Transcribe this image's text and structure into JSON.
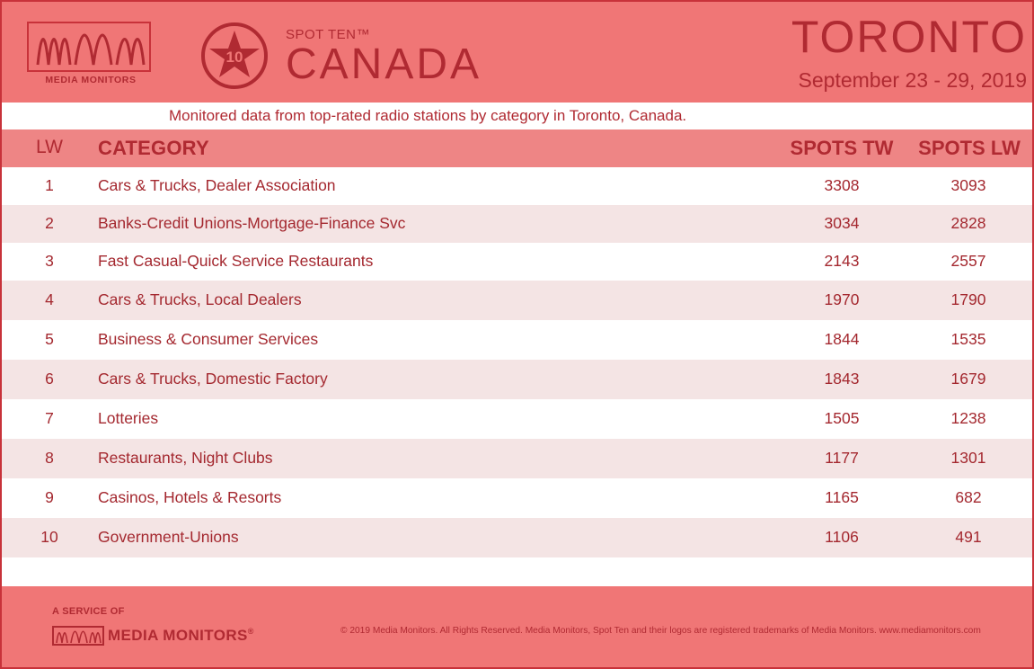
{
  "header": {
    "logo_text": "MEDIA MONITORS",
    "badge_number": "10",
    "spot_label": "SPOT TEN™",
    "country": "CANADA",
    "city": "TORONTO",
    "dates": "September 23 - 29, 2019"
  },
  "subtitle": "Monitored data from top-rated radio stations by category in Toronto, Canada.",
  "table": {
    "headers": {
      "lw": "LW",
      "category": "CATEGORY",
      "spots_tw": "SPOTS TW",
      "spots_lw": "SPOTS LW"
    },
    "rows": [
      {
        "lw": "1",
        "category": "Cars & Trucks, Dealer Association",
        "spots_tw": "3308",
        "spots_lw": "3093"
      },
      {
        "lw": "2",
        "category": "Banks-Credit Unions-Mortgage-Finance Svc",
        "spots_tw": "3034",
        "spots_lw": "2828"
      },
      {
        "lw": "3",
        "category": "Fast Casual-Quick Service Restaurants",
        "spots_tw": "2143",
        "spots_lw": "2557"
      },
      {
        "lw": "4",
        "category": "Cars & Trucks, Local Dealers",
        "spots_tw": "1970",
        "spots_lw": "1790"
      },
      {
        "lw": "5",
        "category": "Business & Consumer Services",
        "spots_tw": "1844",
        "spots_lw": "1535"
      },
      {
        "lw": "6",
        "category": "Cars & Trucks, Domestic Factory",
        "spots_tw": "1843",
        "spots_lw": "1679"
      },
      {
        "lw": "7",
        "category": "Lotteries",
        "spots_tw": "1505",
        "spots_lw": "1238"
      },
      {
        "lw": "8",
        "category": "Restaurants, Night Clubs",
        "spots_tw": "1177",
        "spots_lw": "1301"
      },
      {
        "lw": "9",
        "category": "Casinos, Hotels & Resorts",
        "spots_tw": "1165",
        "spots_lw": "682"
      },
      {
        "lw": "10",
        "category": "Government-Unions",
        "spots_tw": "1106",
        "spots_lw": "491"
      }
    ]
  },
  "footer": {
    "service_of": "A SERVICE OF",
    "brand": "MEDIA MONITORS",
    "registered": "®",
    "copyright": "© 2019 Media Monitors. All Rights Reserved. Media Monitors, Spot Ten and their logos are registered trademarks of Media Monitors. www.mediamonitors.com"
  },
  "colors": {
    "brand_red": "#b02a32",
    "header_bg": "#f07676",
    "table_header_bg": "#ee8585",
    "alt_row_bg": "#f4e4e4"
  }
}
